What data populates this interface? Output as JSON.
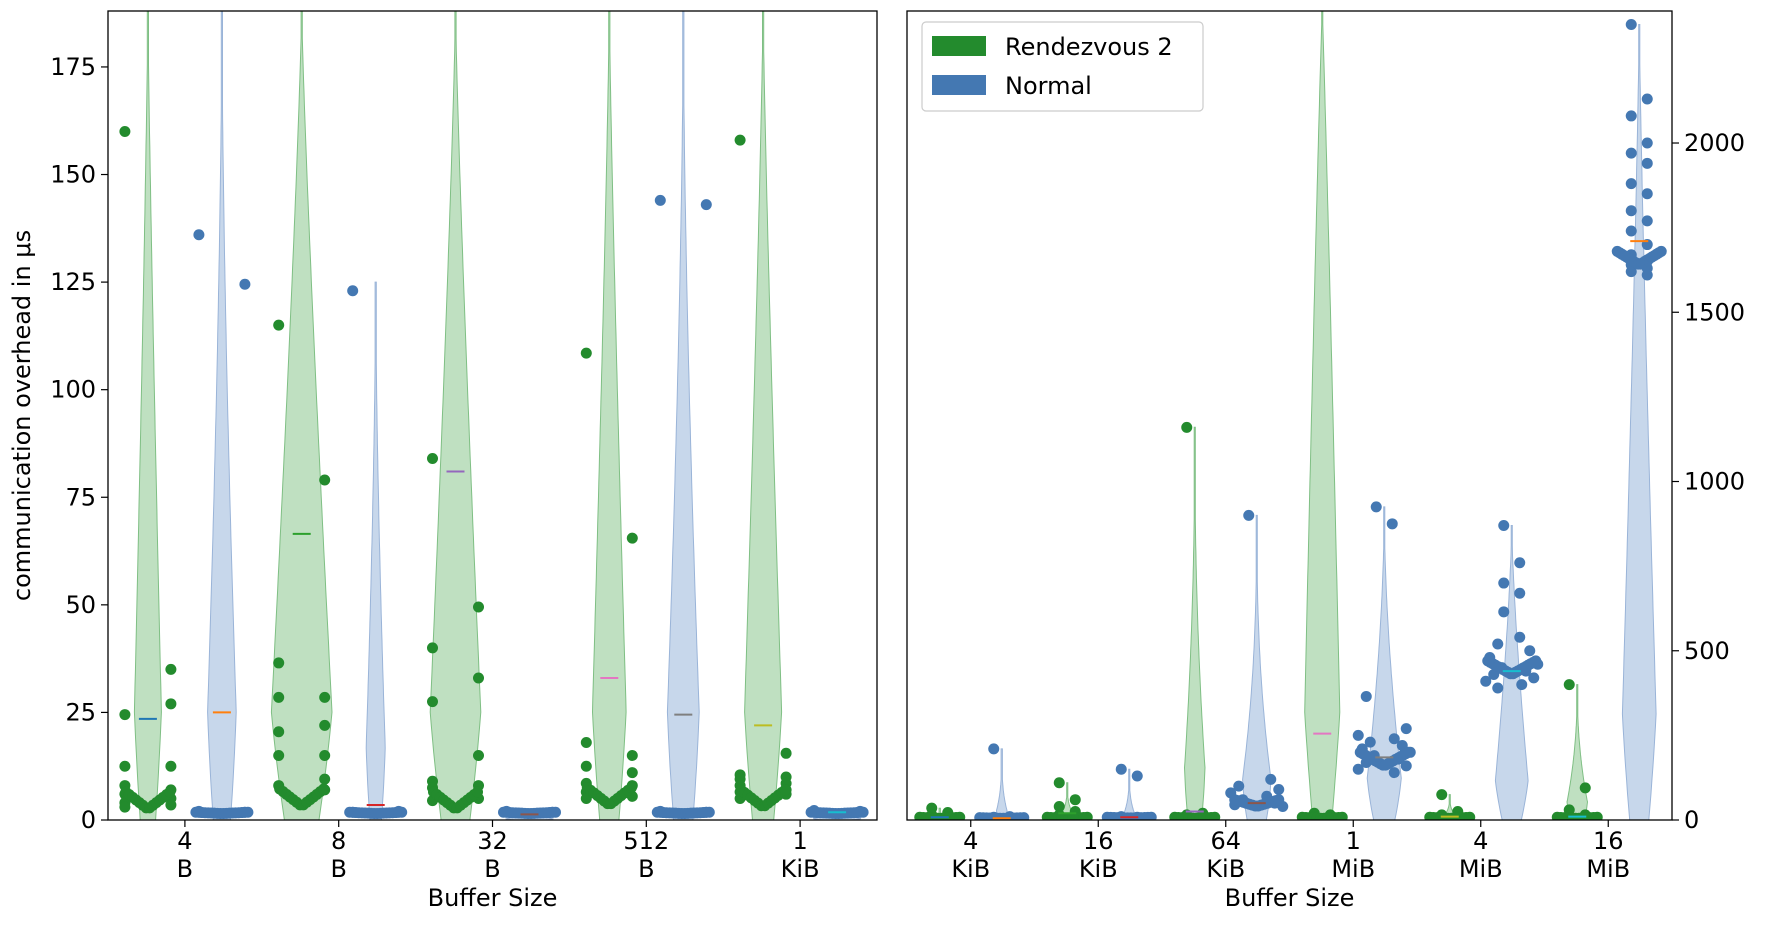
{
  "colors": {
    "rendezvous": "#238b2d",
    "rendezvous_fill": "#a9d5ac",
    "normal": "#4478b2",
    "normal_fill": "#b4c9e4"
  },
  "legend": {
    "position": "top-left of right panel",
    "items": [
      "Rendezvous 2",
      "Normal"
    ]
  },
  "chart_data": [
    {
      "type": "violin",
      "ylabel": "communication overhead in μs",
      "xlabel": "Buffer Size",
      "ylim": [
        0,
        188
      ],
      "yticks": [
        0,
        25,
        50,
        75,
        100,
        125,
        150,
        175
      ],
      "categories": [
        [
          "4",
          "B"
        ],
        [
          "8",
          "B"
        ],
        [
          "32",
          "B"
        ],
        [
          "512",
          "B"
        ],
        [
          "1",
          "KiB"
        ]
      ],
      "series": [
        {
          "name": "Rendezvous 2",
          "medians": [
            2.5,
            3.2,
            2.5,
            3.5,
            3.0
          ],
          "means": [
            23.5,
            66.5,
            81,
            33,
            22
          ],
          "mean_colors": [
            "#1f77b4",
            "#2ca02c",
            "#9467bd",
            "#e377c2",
            "#bcbd22"
          ],
          "outliers": [
            [
              160,
              35,
              24.5,
              27,
              12.5,
              12.5,
              8,
              7,
              6,
              5,
              4,
              3.5,
              3
            ],
            [
              115,
              79,
              36.5,
              28.5,
              28.5,
              22,
              20.5,
              15,
              15,
              9.5,
              8,
              7
            ],
            [
              84,
              49.5,
              40,
              33,
              27.5,
              15,
              9,
              8,
              7.5,
              5,
              4.5
            ],
            [
              108.5,
              65.5,
              18,
              15,
              12.5,
              11,
              8.5,
              8,
              6.5,
              5.5,
              5
            ],
            [
              158,
              15.5,
              10.5,
              10,
              9.5,
              8.5,
              8,
              7,
              6.5,
              6,
              5
            ]
          ]
        },
        {
          "name": "Normal",
          "medians": [
            1.5,
            1.5,
            1.5,
            1.5,
            1.5
          ],
          "means": [
            25,
            3.5,
            1.3,
            24.5,
            1.8
          ],
          "mean_colors": [
            "#ff7f0e",
            "#d62728",
            "#8c564b",
            "#7f7f7f",
            "#17becf"
          ],
          "outliers": [
            [
              136,
              124.5,
              2,
              1.8
            ],
            [
              123,
              2,
              1.8
            ],
            [
              2,
              1.8
            ],
            [
              144,
              143,
              2,
              1.8
            ],
            [
              2.2,
              2,
              1.8
            ]
          ]
        }
      ]
    },
    {
      "type": "violin",
      "xlabel": "Buffer Size",
      "ylim": [
        0,
        2390
      ],
      "yticks": [
        500,
        1000,
        1500,
        2000
      ],
      "ytick_labels": [
        "500",
        "1000",
        "1500",
        "2000"
      ],
      "y_zero_label": "0",
      "categories": [
        [
          "4",
          "KiB"
        ],
        [
          "16",
          "KiB"
        ],
        [
          "64",
          "KiB"
        ],
        [
          "1",
          "MiB"
        ],
        [
          "4",
          "MiB"
        ],
        [
          "16",
          "MiB"
        ]
      ],
      "series": [
        {
          "name": "Rendezvous 2",
          "medians": [
            5,
            5,
            5,
            5,
            5,
            5
          ],
          "means": [
            8,
            20,
            25,
            255,
            10,
            10
          ],
          "mean_colors": [
            "#1f77b4",
            "#2ca02c",
            "#9467bd",
            "#e377c2",
            "#bcbd22",
            "#17becf"
          ],
          "max": [
            35,
            110,
            1160,
            2390,
            75,
            400
          ],
          "outliers": [
            [
              35,
              22,
              15,
              10
            ],
            [
              110,
              60,
              40,
              25,
              15
            ],
            [
              1160,
              20,
              15,
              10
            ],
            [
              20,
              15,
              10
            ],
            [
              75,
              25,
              15,
              10
            ],
            [
              400,
              95,
              30,
              15
            ]
          ]
        },
        {
          "name": "Normal",
          "medians": [
            5,
            6,
            40,
            160,
            430,
            1640
          ],
          "means": [
            5,
            8,
            50,
            185,
            440,
            1710
          ],
          "mean_colors": [
            "#ff7f0e",
            "#d62728",
            "#8c564b",
            "#7f7f7f",
            "#17becf",
            "#ff7f0e"
          ],
          "max": [
            210,
            150,
            900,
            925,
            870,
            2350
          ],
          "outliers": [
            [
              210,
              10,
              8,
              6
            ],
            [
              150,
              130,
              10,
              8
            ],
            [
              900,
              120,
              100,
              90,
              80,
              70,
              60,
              50,
              45,
              40
            ],
            [
              925,
              875,
              365,
              270,
              250,
              240,
              230,
              220,
              210,
              200,
              190,
              180,
              170,
              160,
              150,
              140
            ],
            [
              870,
              760,
              700,
              670,
              615,
              540,
              520,
              500,
              480,
              460,
              450,
              440,
              430,
              420,
              410,
              400,
              390
            ],
            [
              2350,
              2130,
              2080,
              2000,
              1970,
              1940,
              1880,
              1850,
              1800,
              1770,
              1740,
              1700,
              1670,
              1650,
              1640,
              1630,
              1620,
              1610
            ]
          ]
        }
      ]
    }
  ]
}
